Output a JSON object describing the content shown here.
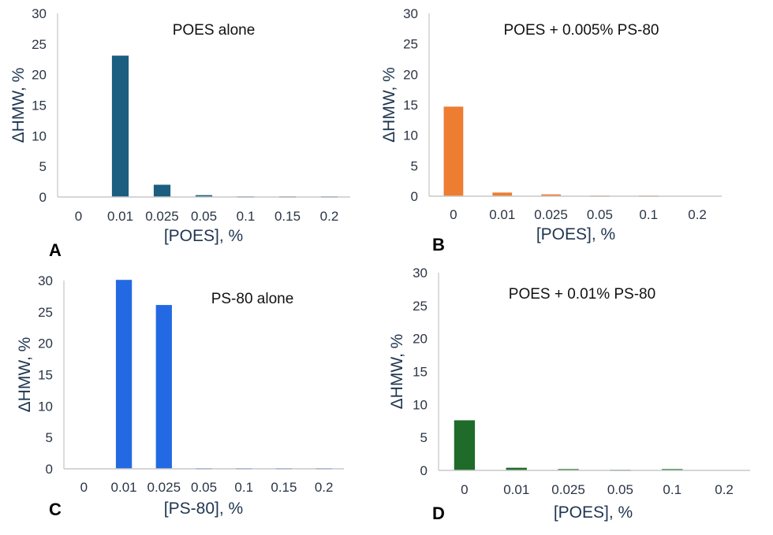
{
  "chart_data": [
    {
      "type": "bar",
      "panel_letter": "A",
      "title": "POES alone",
      "xlabel": "[POES], %",
      "ylabel": "ΔHMW, %",
      "ylim": [
        0,
        30
      ],
      "yticks": [
        0,
        5,
        10,
        15,
        20,
        25,
        30
      ],
      "categories": [
        "0",
        "0.01",
        "0.025",
        "0.05",
        "0.1",
        "0.15",
        "0.2"
      ],
      "values": [
        0,
        23.1,
        2.0,
        0.3,
        0.1,
        0.1,
        0.1
      ],
      "color": "#1b5e80",
      "grid": false
    },
    {
      "type": "bar",
      "panel_letter": "B",
      "title": "POES + 0.005% PS-80",
      "xlabel": "[POES], %",
      "ylabel": "ΔHMW, %",
      "ylim": [
        0,
        30
      ],
      "yticks": [
        0,
        5,
        10,
        15,
        20,
        25,
        30
      ],
      "categories": [
        "0",
        "0.01",
        "0.025",
        "0.05",
        "0.1",
        "0.2"
      ],
      "values": [
        14.7,
        0.6,
        0.3,
        0.1,
        0.1,
        0
      ],
      "color": "#ed7d31",
      "grid": false
    },
    {
      "type": "bar",
      "panel_letter": "C",
      "title": "PS-80 alone",
      "xlabel": "[PS-80],  %",
      "ylabel": "ΔHMW, %",
      "ylim": [
        0,
        30
      ],
      "yticks": [
        0,
        5,
        10,
        15,
        20,
        25,
        30
      ],
      "categories": [
        "0",
        "0.01",
        "0.025",
        "0.05",
        "0.1",
        "0.15",
        "0.2"
      ],
      "values": [
        0,
        30.1,
        26.1,
        0.1,
        0.1,
        0.1,
        0.1
      ],
      "color": "#2369e3",
      "grid": false
    },
    {
      "type": "bar",
      "panel_letter": "D",
      "title": "POES + 0.01% PS-80",
      "xlabel": "[POES], %",
      "ylabel": "ΔHMW, %",
      "ylim": [
        0,
        30
      ],
      "yticks": [
        0,
        5,
        10,
        15,
        20,
        25,
        30
      ],
      "categories": [
        "0",
        "0.01",
        "0.025",
        "0.05",
        "0.1",
        "0.2"
      ],
      "values": [
        7.6,
        0.4,
        0.2,
        0.1,
        0.2,
        0
      ],
      "color": "#1e6b2a",
      "grid": false
    }
  ]
}
